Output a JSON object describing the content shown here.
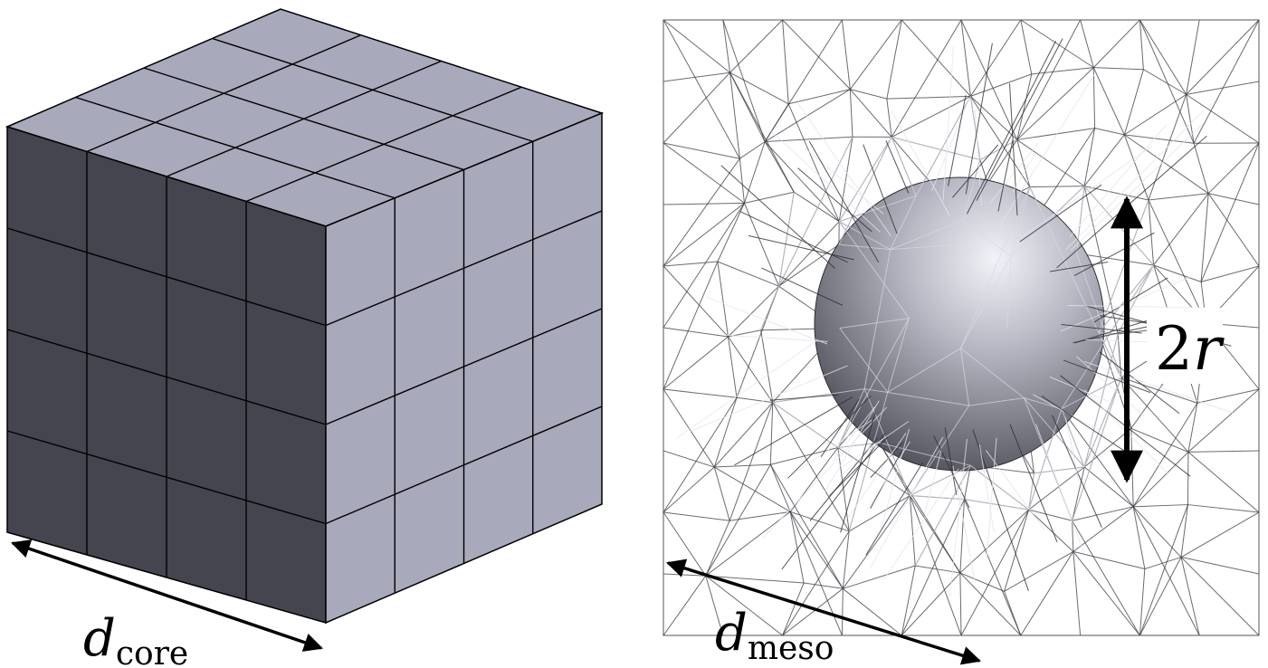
{
  "left_panel": {
    "grid_divisions": 4,
    "length_label": {
      "symbol": "d",
      "subscript": "core"
    }
  },
  "right_panel": {
    "length_label": {
      "symbol": "d",
      "subscript": "meso"
    },
    "diameter_label": {
      "coefficient": "2",
      "symbol": "r"
    }
  },
  "colors": {
    "cube_front": "#44454e",
    "cube_side": "#a8a9ba",
    "cube_top": "#a8a9ba",
    "edge": "#000000",
    "mesh": "#3a3a42",
    "sphere": "#7d7e88"
  }
}
